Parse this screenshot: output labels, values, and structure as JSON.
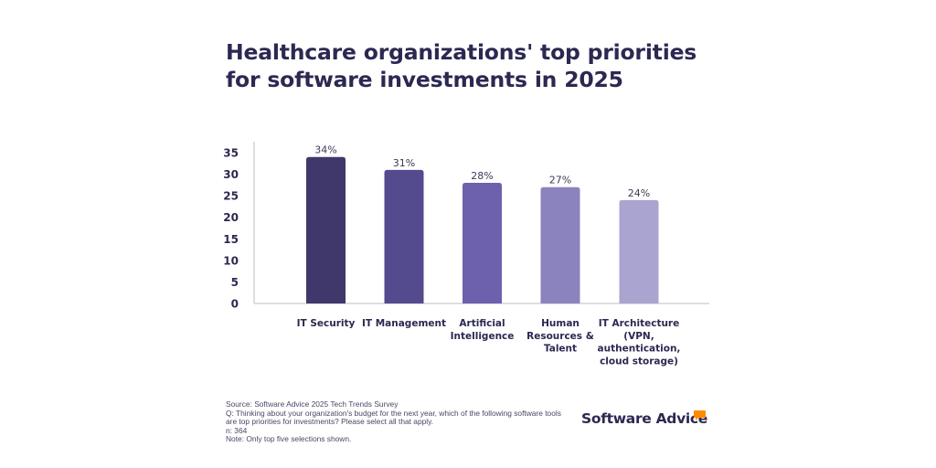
{
  "title": "Healthcare organizations' top priorities for software investments in 2025",
  "chart_data": {
    "type": "bar",
    "title": "Healthcare organizations' top priorities for software investments in 2025",
    "xlabel": "",
    "ylabel": "",
    "categories": [
      [
        "IT Security"
      ],
      [
        "IT Management"
      ],
      [
        "Artificial",
        "Intelligence"
      ],
      [
        "Human",
        "Resources &",
        "Talent"
      ],
      [
        "IT Architecture",
        "(VPN,",
        "authentication,",
        "cloud storage)"
      ]
    ],
    "values": [
      34,
      31,
      28,
      27,
      24
    ],
    "data_labels": [
      "34%",
      "31%",
      "28%",
      "27%",
      "24%"
    ],
    "colors": [
      "#40386b",
      "#544a8e",
      "#6d61ad",
      "#8b83bd",
      "#aaa4d1"
    ],
    "ylim": [
      0,
      35
    ],
    "yticks": [
      0,
      5,
      10,
      15,
      20,
      25,
      30,
      35
    ],
    "grid": false,
    "legend": "none"
  },
  "footer": {
    "source": "Source: Software Advice 2025 Tech Trends Survey",
    "question_line1": "Q: Thinking about your organization's budget for the next year, which of the following software tools",
    "question_line2": "are top priorities for investments? Please select all that apply.",
    "n": "n: 364",
    "note": "Note: Only top five selections shown."
  },
  "logo": {
    "text": "Software Advice",
    "accent_color": "#ff8a00"
  }
}
